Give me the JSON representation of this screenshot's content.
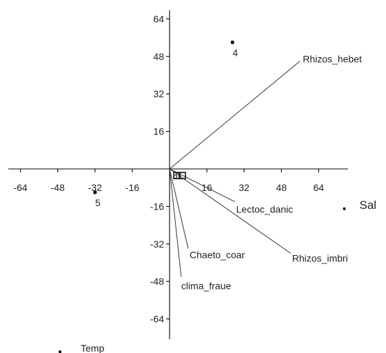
{
  "chart_data": {
    "type": "scatter",
    "title": "",
    "xlabel": "",
    "ylabel": "",
    "xlim": [
      -72,
      86
    ],
    "ylim": [
      -80,
      72
    ],
    "grid": false,
    "x_ticks": [
      -64,
      -48,
      -32,
      -16,
      16,
      32,
      48,
      64
    ],
    "y_ticks": [
      64,
      48,
      32,
      16,
      -16,
      -32,
      -48,
      -64
    ],
    "sites": [
      {
        "label": "4",
        "x": 27,
        "y": 54
      },
      {
        "label": "5",
        "x": -32,
        "y": -10
      }
    ],
    "site_cluster": {
      "label": "3",
      "x": 3,
      "y": -3
    },
    "species_vectors": [
      {
        "label": "Rhizos_hebet",
        "x": 56,
        "y": 46
      },
      {
        "label": "Lectoc_danic",
        "x": 28,
        "y": -14
      },
      {
        "label": "Rhizos_imbri",
        "x": 52,
        "y": -36
      },
      {
        "label": "Chaeto_coar",
        "x": 8,
        "y": -34
      },
      {
        "label": "clima_fraue",
        "x": 5,
        "y": -46
      }
    ],
    "env_points": [
      {
        "label": "Sal",
        "x": 75,
        "y": -17
      },
      {
        "label": "Temp",
        "x": -47,
        "y": -78
      }
    ]
  }
}
